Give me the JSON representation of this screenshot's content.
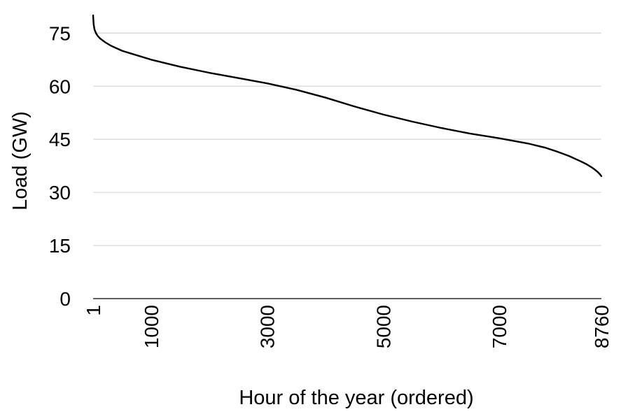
{
  "chart_data": {
    "type": "line",
    "xlabel": "Hour of the year (ordered)",
    "ylabel": "Load (GW)",
    "xlim": [
      1,
      8760
    ],
    "ylim": [
      0,
      80
    ],
    "y_ticks": [
      0,
      15,
      30,
      45,
      60,
      75
    ],
    "y_tick_labels": [
      "0",
      "15",
      "30",
      "45",
      "60",
      "75"
    ],
    "x_ticks": [
      1,
      1000,
      3000,
      5000,
      7000,
      8760
    ],
    "x_tick_labels": [
      "1",
      "1000",
      "3000",
      "5000",
      "7000",
      "8760"
    ],
    "grid": true,
    "legend": "none",
    "line_color": "#000000",
    "grid_color": "#d9d9d9",
    "series": [
      {
        "x": [
          1,
          10,
          25,
          50,
          80,
          120,
          200,
          300,
          500,
          700,
          1000,
          1500,
          2000,
          2500,
          3000,
          3500,
          4000,
          4500,
          5000,
          5500,
          6000,
          6500,
          7000,
          7500,
          7800,
          8000,
          8200,
          8400,
          8500,
          8600,
          8650,
          8700,
          8730,
          8760
        ],
        "y": [
          80,
          77.5,
          76,
          75,
          74.2,
          73.5,
          72.5,
          71.5,
          70,
          69,
          67.5,
          65.5,
          63.8,
          62.3,
          60.8,
          59,
          56.8,
          54.3,
          52,
          50,
          48.2,
          46.6,
          45.3,
          43.8,
          42.6,
          41.5,
          40.3,
          38.8,
          38,
          37,
          36.4,
          35.7,
          35.2,
          34.6
        ]
      }
    ]
  }
}
